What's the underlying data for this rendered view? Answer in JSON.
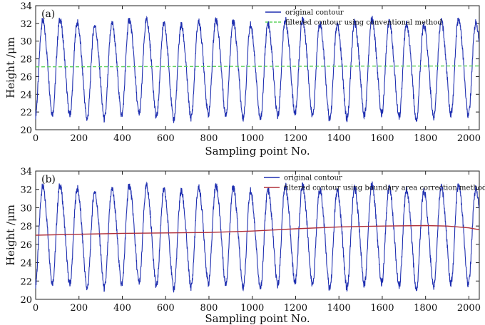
{
  "chart_data": [
    {
      "type": "line",
      "panel_label": "(a)",
      "xlabel": "Sampling point No.",
      "ylabel": "Height /μm",
      "xlim": [
        0,
        2048
      ],
      "ylim": [
        20,
        34
      ],
      "xticks": [
        0,
        200,
        400,
        600,
        800,
        1000,
        1200,
        1400,
        1600,
        1800,
        2000
      ],
      "yticks": [
        20,
        22,
        24,
        26,
        28,
        30,
        32,
        34
      ],
      "legend_position": "top-right",
      "series": [
        {
          "name": "original contour",
          "color": "#1f2fb0",
          "style": "solid",
          "description_values": {
            "period_points": 80,
            "min": 21.5,
            "max": 32.5
          }
        },
        {
          "name": "filtered contour using conventional method",
          "color": "#5fd35f",
          "style": "dashed",
          "x": [
            0,
            2048
          ],
          "y": [
            27.1,
            27.2
          ]
        }
      ]
    },
    {
      "type": "line",
      "panel_label": "(b)",
      "xlabel": "Sampling point No.",
      "ylabel": "Height /μm",
      "xlim": [
        0,
        2048
      ],
      "ylim": [
        20,
        34
      ],
      "xticks": [
        0,
        200,
        400,
        600,
        800,
        1000,
        1200,
        1400,
        1600,
        1800,
        2000
      ],
      "yticks": [
        20,
        22,
        24,
        26,
        28,
        30,
        32,
        34
      ],
      "legend_position": "top-right",
      "series": [
        {
          "name": "original contour",
          "color": "#1f2fb0",
          "style": "solid",
          "description_values": {
            "period_points": 80,
            "min": 21.5,
            "max": 32.5
          }
        },
        {
          "name": "filtered contour using boundary area correction method",
          "color": "#b0303a",
          "style": "solid",
          "x": [
            0,
            200,
            400,
            600,
            800,
            1000,
            1200,
            1400,
            1600,
            1800,
            1900,
            2000,
            2048
          ],
          "y": [
            27.0,
            27.1,
            27.2,
            27.25,
            27.3,
            27.45,
            27.7,
            27.9,
            28.0,
            28.05,
            28.0,
            27.8,
            27.6
          ]
        }
      ]
    }
  ]
}
